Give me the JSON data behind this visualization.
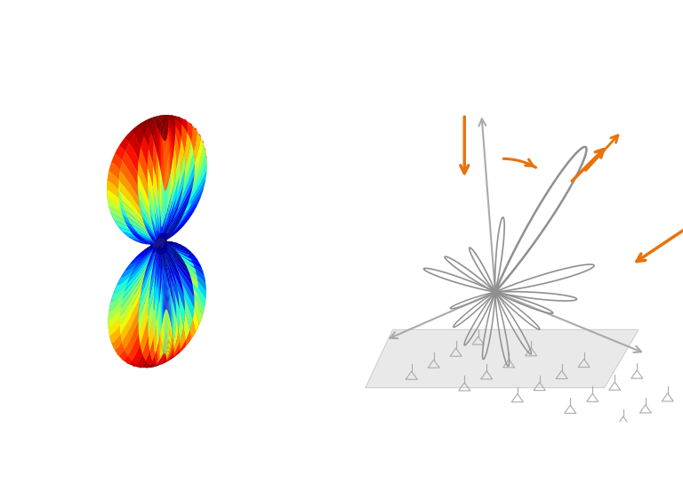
{
  "background_color": "#ffffff",
  "left_panel": {
    "colormap": "jet",
    "view_elev": 15,
    "view_azim": -50
  },
  "right_panel": {
    "arrow_color": "#E8720C",
    "lobe_color": "#909090",
    "axis_color": "#AAAAAA",
    "plane_color": "#E0E0E0",
    "ant_color": "#AAAAAA",
    "lw_main": 1.8,
    "lw_side": 1.2
  }
}
